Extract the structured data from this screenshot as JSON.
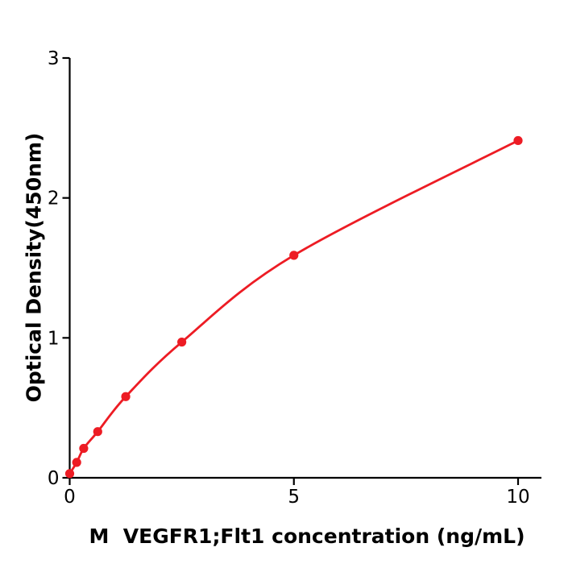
{
  "chart_data": {
    "type": "scatter",
    "subtype": "line-with-markers",
    "title": "",
    "xlabel": "M  VEGFR1;Flt1 concentration (ng/mL)",
    "ylabel": "Optical Density(450nm)",
    "x": [
      0,
      0.156,
      0.3125,
      0.625,
      1.25,
      2.5,
      5,
      10
    ],
    "y": [
      0.03,
      0.11,
      0.21,
      0.33,
      0.58,
      0.97,
      1.59,
      2.41
    ],
    "xticks": [
      0,
      5,
      10
    ],
    "yticks": [
      0,
      1,
      2,
      3
    ],
    "xlim": [
      0,
      10.5
    ],
    "ylim": [
      0,
      3
    ],
    "grid": false,
    "legend_position": "none",
    "line_color": "#ed1c24",
    "marker_color": "#ed1c24",
    "axis_color": "#000000",
    "background_color": "#ffffff"
  }
}
